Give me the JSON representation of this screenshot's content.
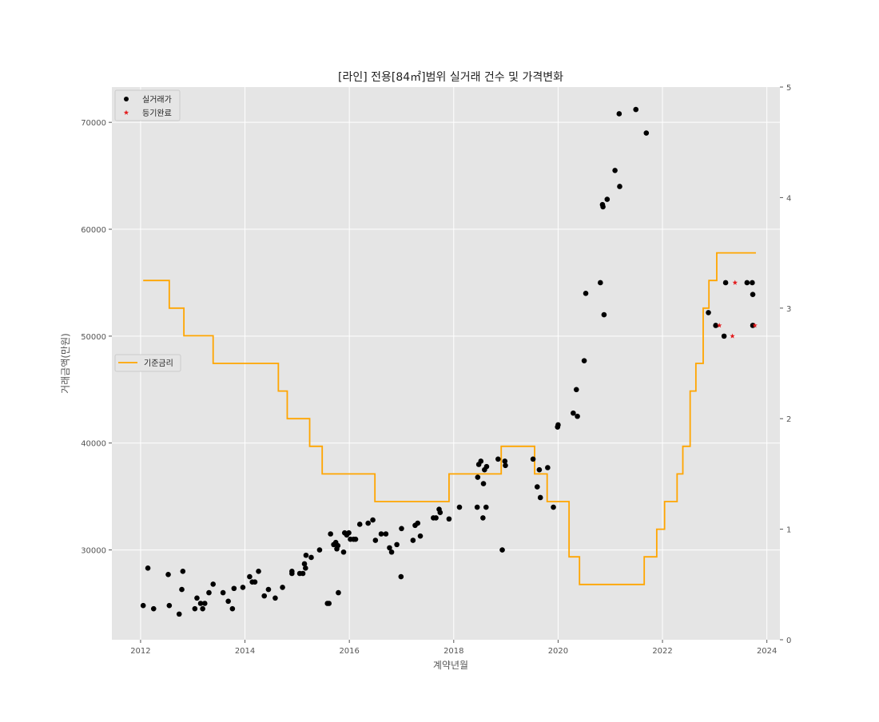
{
  "chart_data": {
    "type": "scatter",
    "title": "[라인] 전용[84㎡]범위 실거래 건수 및 가격변화",
    "xlabel": "계약년월",
    "ylabel": "거래금액(만원)",
    "xlim": [
      2011.45,
      2024.25
    ],
    "ylim": [
      21600,
      73300
    ],
    "y2lim": [
      0,
      5
    ],
    "x_ticks": [
      2012,
      2014,
      2016,
      2018,
      2020,
      2022,
      2024
    ],
    "y_ticks": [
      30000,
      40000,
      50000,
      60000,
      70000
    ],
    "y2_ticks": [
      0,
      1,
      2,
      3,
      4,
      5
    ],
    "grid": true,
    "legend_upper": {
      "placement": "top-left",
      "entries": [
        "실거래가",
        "등기완료"
      ]
    },
    "legend_lower": {
      "placement": "center-left",
      "entries": [
        "기준금리"
      ]
    },
    "colors": {
      "trade": "#000000",
      "registered": "#e31a1c",
      "rate": "#ffa500",
      "panel": "#e5e5e5",
      "grid": "#ffffff"
    },
    "series": [
      {
        "name": "실거래가",
        "marker": "circle",
        "axis": "left",
        "points": [
          [
            2012.05,
            24800
          ],
          [
            2012.14,
            28300
          ],
          [
            2012.25,
            24500
          ],
          [
            2012.53,
            27700
          ],
          [
            2012.55,
            24800
          ],
          [
            2012.74,
            24000
          ],
          [
            2012.79,
            26300
          ],
          [
            2012.81,
            28000
          ],
          [
            2013.04,
            24500
          ],
          [
            2013.08,
            25500
          ],
          [
            2013.15,
            25000
          ],
          [
            2013.19,
            24500
          ],
          [
            2013.23,
            25000
          ],
          [
            2013.31,
            26000
          ],
          [
            2013.39,
            26800
          ],
          [
            2013.58,
            26000
          ],
          [
            2013.68,
            25200
          ],
          [
            2013.76,
            24500
          ],
          [
            2013.79,
            26400
          ],
          [
            2013.96,
            26500
          ],
          [
            2014.09,
            27500
          ],
          [
            2014.14,
            27000
          ],
          [
            2014.19,
            27000
          ],
          [
            2014.26,
            28000
          ],
          [
            2014.37,
            25700
          ],
          [
            2014.45,
            26300
          ],
          [
            2014.58,
            25500
          ],
          [
            2014.72,
            26500
          ],
          [
            2014.9,
            27800
          ],
          [
            2014.9,
            28000
          ],
          [
            2015.05,
            27800
          ],
          [
            2015.11,
            27800
          ],
          [
            2015.14,
            28700
          ],
          [
            2015.16,
            28300
          ],
          [
            2015.17,
            29500
          ],
          [
            2015.27,
            29300
          ],
          [
            2015.43,
            30000
          ],
          [
            2015.58,
            25000
          ],
          [
            2015.61,
            25000
          ],
          [
            2015.64,
            31500
          ],
          [
            2015.7,
            30500
          ],
          [
            2015.74,
            30700
          ],
          [
            2015.76,
            30100
          ],
          [
            2015.78,
            30400
          ],
          [
            2015.79,
            26000
          ],
          [
            2015.89,
            29800
          ],
          [
            2015.91,
            31600
          ],
          [
            2015.95,
            31400
          ],
          [
            2015.99,
            31600
          ],
          [
            2016.02,
            31000
          ],
          [
            2016.08,
            31000
          ],
          [
            2016.12,
            31000
          ],
          [
            2016.2,
            32400
          ],
          [
            2016.36,
            32500
          ],
          [
            2016.45,
            32800
          ],
          [
            2016.5,
            30900
          ],
          [
            2016.61,
            31500
          ],
          [
            2016.7,
            31500
          ],
          [
            2016.77,
            30200
          ],
          [
            2016.81,
            29800
          ],
          [
            2016.91,
            30500
          ],
          [
            2016.99,
            27500
          ],
          [
            2017.0,
            32000
          ],
          [
            2017.22,
            30900
          ],
          [
            2017.26,
            32300
          ],
          [
            2017.31,
            32500
          ],
          [
            2017.36,
            31300
          ],
          [
            2017.61,
            33000
          ],
          [
            2017.66,
            33000
          ],
          [
            2017.72,
            33800
          ],
          [
            2017.74,
            33500
          ],
          [
            2017.91,
            32900
          ],
          [
            2018.11,
            34000
          ],
          [
            2018.45,
            34000
          ],
          [
            2018.46,
            36800
          ],
          [
            2018.48,
            38000
          ],
          [
            2018.52,
            38300
          ],
          [
            2018.56,
            33000
          ],
          [
            2018.57,
            36200
          ],
          [
            2018.59,
            37500
          ],
          [
            2018.62,
            34000
          ],
          [
            2018.63,
            37800
          ],
          [
            2018.85,
            38500
          ],
          [
            2018.93,
            30000
          ],
          [
            2018.98,
            38300
          ],
          [
            2018.99,
            37900
          ],
          [
            2019.52,
            38500
          ],
          [
            2019.6,
            35900
          ],
          [
            2019.64,
            37500
          ],
          [
            2019.66,
            34900
          ],
          [
            2019.8,
            37700
          ],
          [
            2019.91,
            34000
          ],
          [
            2019.99,
            41500
          ],
          [
            2020.0,
            41700
          ],
          [
            2020.29,
            42800
          ],
          [
            2020.35,
            45000
          ],
          [
            2020.37,
            42500
          ],
          [
            2020.5,
            47700
          ],
          [
            2020.53,
            54000
          ],
          [
            2020.81,
            55000
          ],
          [
            2020.85,
            62300
          ],
          [
            2020.86,
            62100
          ],
          [
            2020.88,
            52000
          ],
          [
            2020.94,
            62800
          ],
          [
            2021.09,
            65500
          ],
          [
            2021.17,
            70800
          ],
          [
            2021.18,
            64000
          ],
          [
            2021.49,
            71200
          ],
          [
            2021.69,
            69000
          ],
          [
            2022.88,
            52200
          ],
          [
            2023.02,
            51000
          ],
          [
            2023.18,
            50000
          ],
          [
            2023.21,
            55000
          ],
          [
            2023.62,
            55000
          ],
          [
            2023.72,
            55000
          ],
          [
            2023.73,
            53900
          ],
          [
            2023.73,
            51000
          ]
        ]
      },
      {
        "name": "등기완료",
        "marker": "star",
        "axis": "left",
        "points": [
          [
            2023.09,
            51000
          ],
          [
            2023.34,
            50000
          ],
          [
            2023.39,
            55000
          ],
          [
            2023.77,
            51000
          ]
        ]
      },
      {
        "name": "기준금리",
        "type": "step",
        "axis": "right",
        "points": [
          [
            2012.05,
            3.25
          ],
          [
            2012.55,
            3.25
          ],
          [
            2012.55,
            3.0
          ],
          [
            2012.83,
            3.0
          ],
          [
            2012.83,
            2.75
          ],
          [
            2013.39,
            2.75
          ],
          [
            2013.39,
            2.5
          ],
          [
            2014.64,
            2.5
          ],
          [
            2014.64,
            2.25
          ],
          [
            2014.81,
            2.25
          ],
          [
            2014.81,
            2.0
          ],
          [
            2015.24,
            2.0
          ],
          [
            2015.24,
            1.75
          ],
          [
            2015.48,
            1.75
          ],
          [
            2015.48,
            1.5
          ],
          [
            2016.49,
            1.5
          ],
          [
            2016.49,
            1.25
          ],
          [
            2017.91,
            1.25
          ],
          [
            2017.91,
            1.5
          ],
          [
            2018.91,
            1.5
          ],
          [
            2018.91,
            1.75
          ],
          [
            2019.55,
            1.75
          ],
          [
            2019.55,
            1.5
          ],
          [
            2019.79,
            1.5
          ],
          [
            2019.79,
            1.25
          ],
          [
            2020.21,
            1.25
          ],
          [
            2020.21,
            0.75
          ],
          [
            2020.41,
            0.75
          ],
          [
            2020.41,
            0.5
          ],
          [
            2021.65,
            0.5
          ],
          [
            2021.65,
            0.75
          ],
          [
            2021.89,
            0.75
          ],
          [
            2021.89,
            1.0
          ],
          [
            2022.04,
            1.0
          ],
          [
            2022.04,
            1.25
          ],
          [
            2022.28,
            1.25
          ],
          [
            2022.28,
            1.5
          ],
          [
            2022.39,
            1.5
          ],
          [
            2022.39,
            1.75
          ],
          [
            2022.53,
            1.75
          ],
          [
            2022.53,
            2.25
          ],
          [
            2022.64,
            2.25
          ],
          [
            2022.64,
            2.5
          ],
          [
            2022.78,
            2.5
          ],
          [
            2022.78,
            3.0
          ],
          [
            2022.89,
            3.0
          ],
          [
            2022.89,
            3.25
          ],
          [
            2023.04,
            3.25
          ],
          [
            2023.04,
            3.5
          ],
          [
            2023.79,
            3.5
          ]
        ]
      }
    ]
  }
}
